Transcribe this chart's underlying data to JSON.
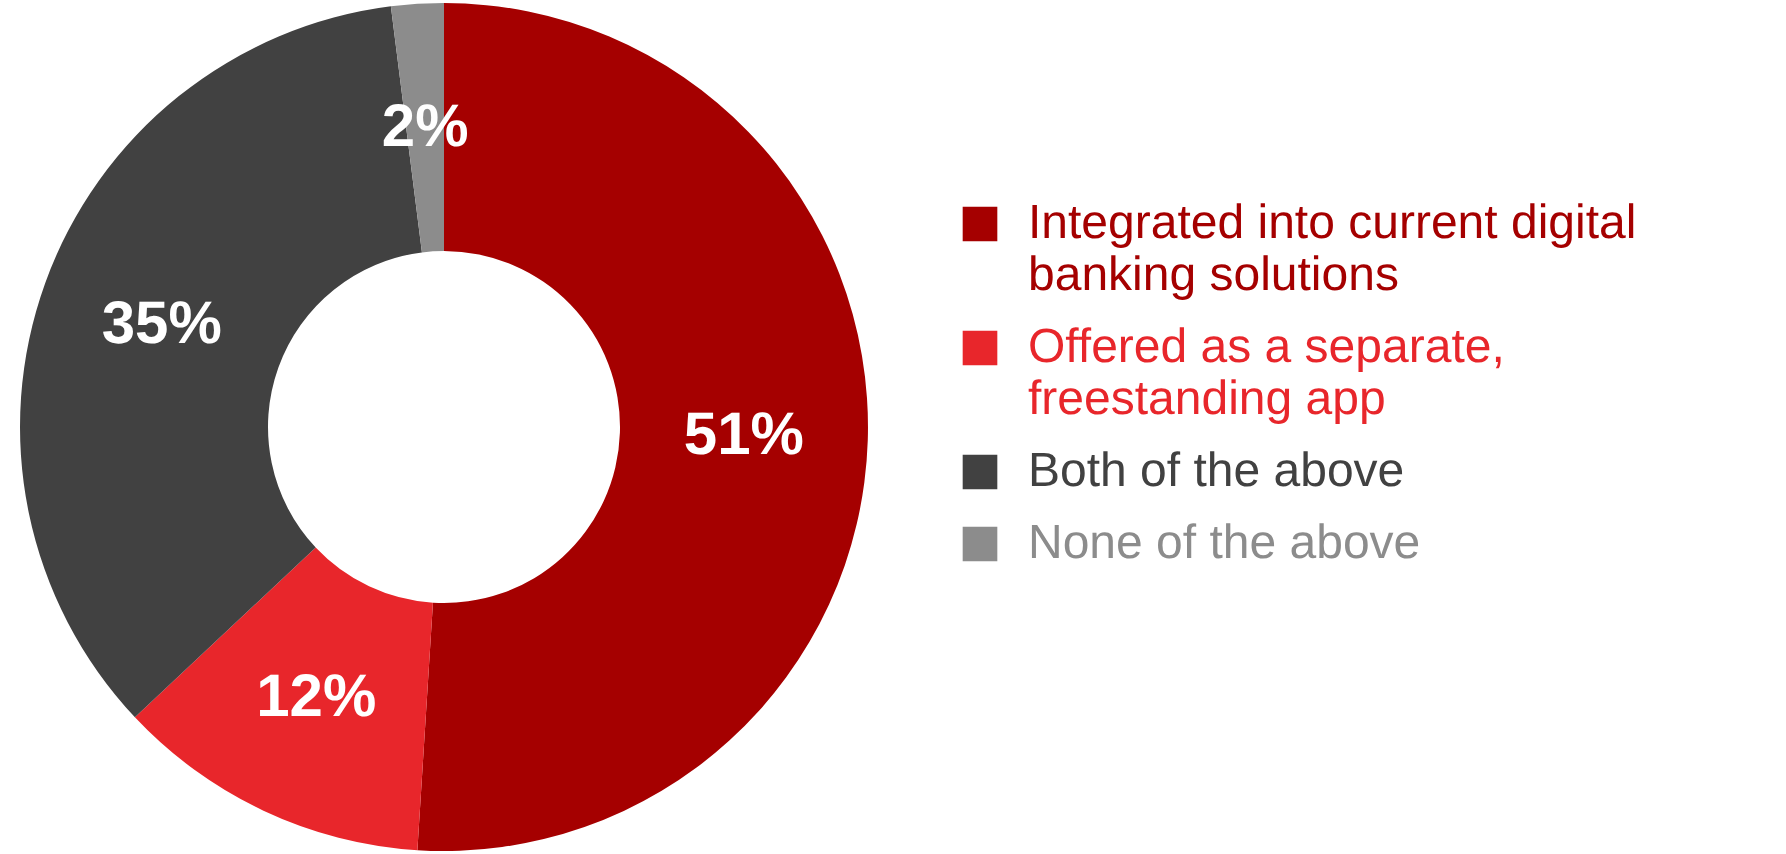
{
  "chart_data": {
    "type": "donut",
    "categories": [
      "Integrated into current digital banking solutions",
      "Offered as a separate, freestanding app",
      "Both of the above",
      "None of the above"
    ],
    "values": [
      51,
      12,
      35,
      2
    ],
    "colors": [
      "#a50000",
      "#e8262b",
      "#414141",
      "#8c8c8c"
    ],
    "value_labels": [
      "51%",
      "12%",
      "35%",
      "2%"
    ],
    "legend": "right"
  }
}
